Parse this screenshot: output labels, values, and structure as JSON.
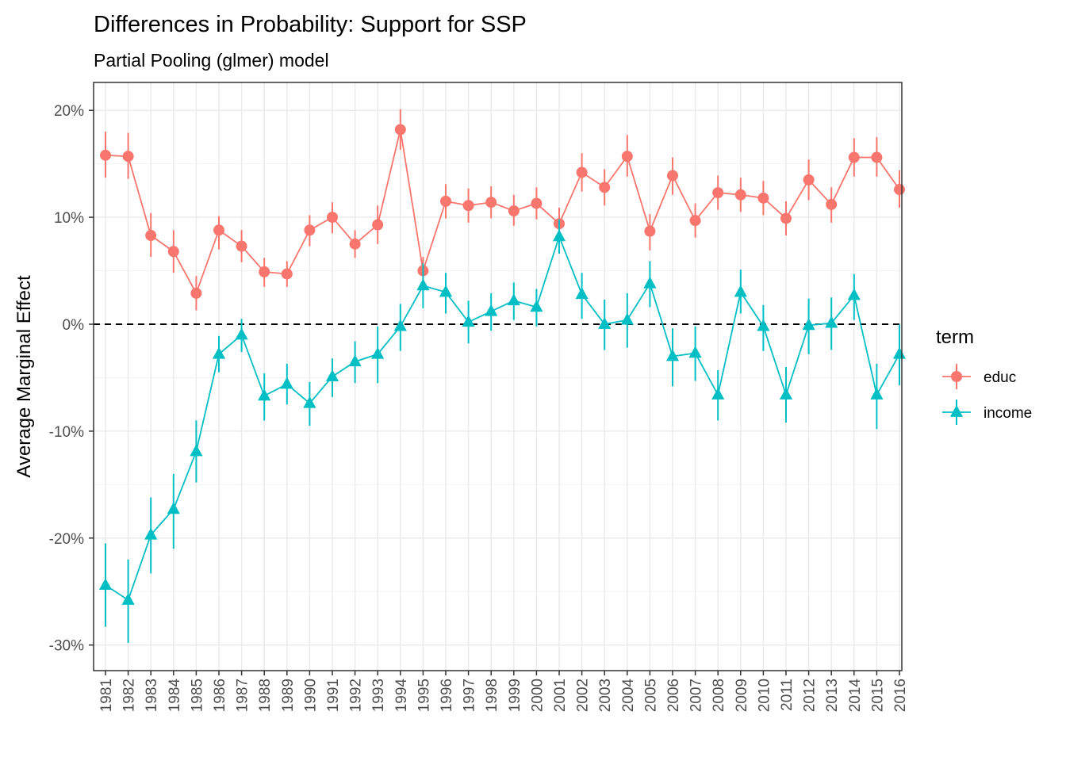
{
  "chart_data": {
    "type": "line",
    "title": "Differences in Probability: Support for SSP",
    "subtitle": "Partial Pooling (glmer) model",
    "xlabel": "",
    "ylabel": "Average Marginal Effect",
    "ylim": [
      -0.325,
      0.2
    ],
    "yticks": [
      -0.3,
      -0.2,
      -0.1,
      0,
      0.1,
      0.2
    ],
    "ytick_labels": [
      "-30%",
      "-20%",
      "-10%",
      "0%",
      "10%",
      "20%"
    ],
    "reference_line": 0,
    "grid": true,
    "legend_title": "term",
    "legend_position": "right",
    "x": [
      "1981",
      "1982",
      "1983",
      "1984",
      "1985",
      "1986",
      "1987",
      "1988",
      "1989",
      "1990",
      "1991",
      "1992",
      "1993",
      "1994",
      "1995",
      "1996",
      "1997",
      "1998",
      "1999",
      "2000",
      "2001",
      "2002",
      "2003",
      "2004",
      "2005",
      "2006",
      "2007",
      "2008",
      "2009",
      "2010",
      "2011",
      "2012",
      "2013",
      "2014",
      "2015",
      "2016"
    ],
    "series": [
      {
        "name": "educ",
        "color": "#f8766d",
        "marker": "circle",
        "values": [
          0.158,
          0.157,
          0.083,
          0.068,
          0.029,
          0.088,
          0.073,
          0.049,
          0.047,
          0.088,
          0.1,
          0.075,
          0.093,
          0.182,
          0.05,
          0.115,
          0.111,
          0.114,
          0.106,
          0.113,
          0.094,
          0.142,
          0.128,
          0.157,
          0.087,
          0.139,
          0.097,
          0.123,
          0.121,
          0.118,
          0.099,
          0.135,
          0.112,
          0.156,
          0.156,
          0.126
        ],
        "lower": [
          0.137,
          0.136,
          0.063,
          0.048,
          0.013,
          0.07,
          0.058,
          0.035,
          0.035,
          0.073,
          0.085,
          0.062,
          0.075,
          0.163,
          0.037,
          0.099,
          0.095,
          0.099,
          0.092,
          0.098,
          0.08,
          0.124,
          0.111,
          0.138,
          0.069,
          0.121,
          0.081,
          0.107,
          0.105,
          0.102,
          0.083,
          0.116,
          0.095,
          0.138,
          0.138,
          0.109
        ],
        "upper": [
          0.18,
          0.179,
          0.104,
          0.088,
          0.045,
          0.101,
          0.088,
          0.062,
          0.059,
          0.102,
          0.114,
          0.088,
          0.111,
          0.201,
          0.063,
          0.131,
          0.127,
          0.129,
          0.121,
          0.128,
          0.109,
          0.16,
          0.145,
          0.177,
          0.103,
          0.156,
          0.113,
          0.139,
          0.137,
          0.134,
          0.115,
          0.154,
          0.128,
          0.174,
          0.175,
          0.144
        ]
      },
      {
        "name": "income",
        "color": "#00bfc4",
        "marker": "triangle",
        "values": [
          -0.244,
          -0.258,
          -0.197,
          -0.173,
          -0.119,
          -0.028,
          -0.01,
          -0.067,
          -0.056,
          -0.074,
          -0.049,
          -0.035,
          -0.028,
          -0.002,
          0.036,
          0.03,
          0.002,
          0.012,
          0.022,
          0.016,
          0.082,
          0.028,
          0.0,
          0.004,
          0.038,
          -0.03,
          -0.027,
          -0.066,
          0.03,
          -0.002,
          -0.066,
          -0.001,
          0.001,
          0.027,
          -0.066,
          -0.028
        ],
        "lower": [
          -0.283,
          -0.298,
          -0.233,
          -0.21,
          -0.148,
          -0.045,
          -0.026,
          -0.09,
          -0.075,
          -0.095,
          -0.068,
          -0.055,
          -0.055,
          -0.025,
          0.015,
          0.01,
          -0.018,
          -0.006,
          0.004,
          -0.002,
          0.066,
          0.005,
          -0.024,
          -0.022,
          0.016,
          -0.058,
          -0.053,
          -0.09,
          0.01,
          -0.025,
          -0.092,
          -0.028,
          -0.024,
          0.004,
          -0.098,
          -0.057
        ],
        "upper": [
          -0.205,
          -0.22,
          -0.162,
          -0.14,
          -0.09,
          -0.011,
          0.005,
          -0.046,
          -0.037,
          -0.054,
          -0.032,
          -0.016,
          -0.002,
          0.019,
          0.057,
          0.048,
          0.022,
          0.029,
          0.039,
          0.033,
          0.098,
          0.048,
          0.023,
          0.029,
          0.059,
          -0.004,
          -0.002,
          -0.043,
          0.051,
          0.018,
          -0.04,
          0.024,
          0.025,
          0.047,
          -0.037,
          0.0
        ]
      }
    ]
  }
}
